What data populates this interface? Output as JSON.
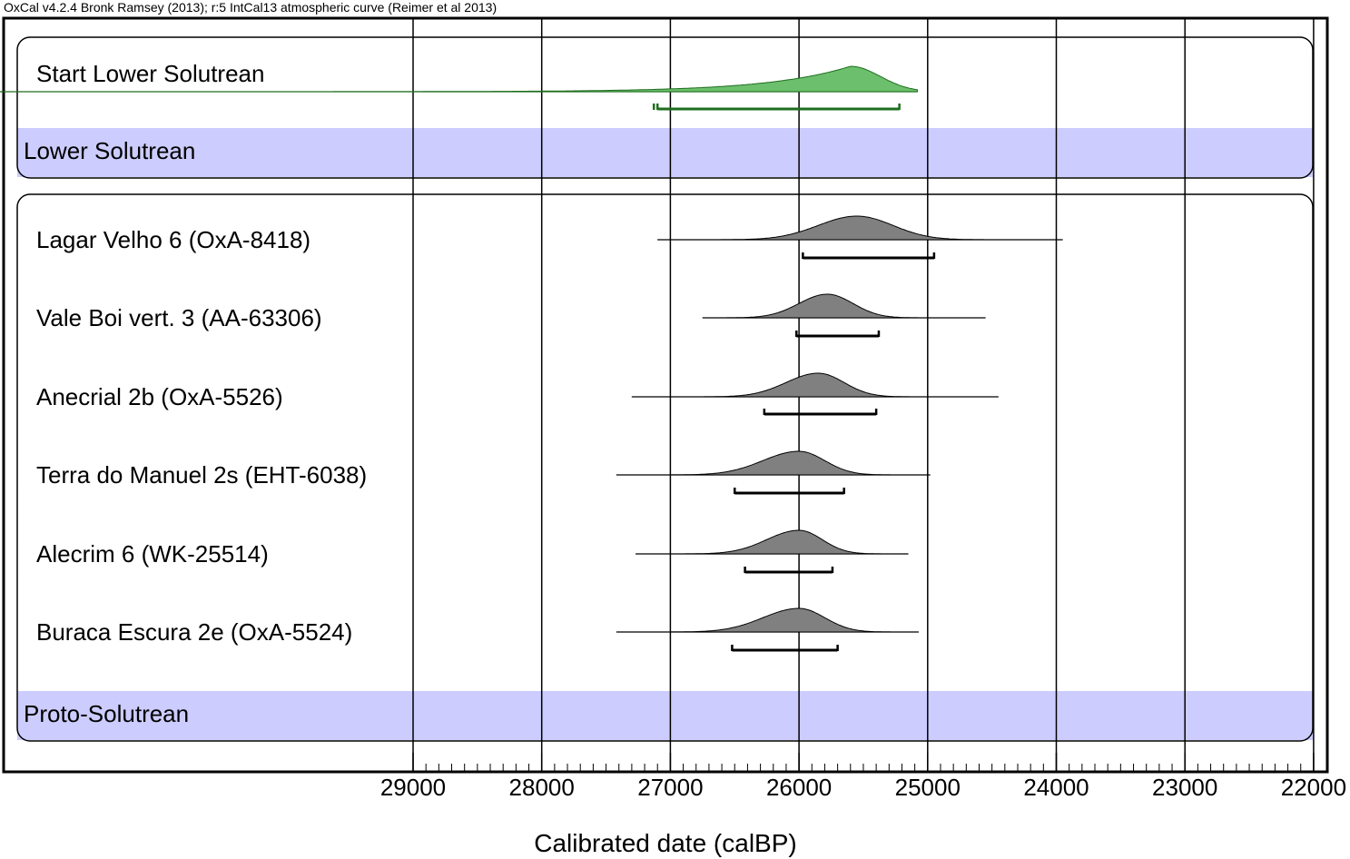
{
  "header": "OxCal v4.2.4 Bronk Ramsey (2013); r:5 IntCal13 atmospheric curve (Reimer et al 2013)",
  "colors": {
    "boundary_fill": "#6cbf6c",
    "boundary_line": "#1e6e1e",
    "date_fill": "#808080",
    "phase_band": "#ccccff"
  },
  "chart_data": {
    "type": "area",
    "xlabel": "Calibrated date (calBP)",
    "xlim": [
      29000,
      22000
    ],
    "x_ticks": [
      29000,
      28000,
      27000,
      26000,
      25000,
      24000,
      23000,
      22000
    ],
    "phases": [
      {
        "label": "Lower Solutrean"
      },
      {
        "label": "Proto-Solutrean"
      }
    ],
    "rows": [
      {
        "label": "Start Lower Solutrean",
        "kind": "boundary",
        "mode": 25600,
        "sigma_old": 700,
        "sigma_young": 230,
        "start": 30000,
        "end": 25080,
        "range": [
          27100,
          25220
        ]
      },
      {
        "label": "Lagar Velho 6 (OxA-8418)",
        "kind": "date",
        "mode": 25550,
        "sigma_old": 300,
        "sigma_young": 280,
        "start": 27100,
        "end": 23950,
        "range": [
          25970,
          24950
        ]
      },
      {
        "label": "Vale Boi vert. 3 (AA-63306)",
        "kind": "date",
        "mode": 25780,
        "sigma_old": 220,
        "sigma_young": 200,
        "start": 26750,
        "end": 24550,
        "range": [
          26020,
          25380
        ]
      },
      {
        "label": "Anecrial 2b (OxA-5526)",
        "kind": "date",
        "mode": 25850,
        "sigma_old": 250,
        "sigma_young": 200,
        "start": 27300,
        "end": 24450,
        "range": [
          26270,
          25400
        ]
      },
      {
        "label": "Terra do Manuel 2s (EHT-6038)",
        "kind": "date",
        "mode": 26000,
        "sigma_old": 280,
        "sigma_young": 200,
        "start": 27420,
        "end": 24980,
        "range": [
          26500,
          25650
        ]
      },
      {
        "label": "Alecrim 6 (WK-25514)",
        "kind": "date",
        "mode": 26000,
        "sigma_old": 250,
        "sigma_young": 180,
        "start": 27270,
        "end": 25150,
        "range": [
          26420,
          25740
        ]
      },
      {
        "label": "Buraca Escura 2e (OxA-5524)",
        "kind": "date",
        "mode": 26000,
        "sigma_old": 280,
        "sigma_young": 200,
        "start": 27420,
        "end": 25070,
        "range": [
          26520,
          25700
        ]
      }
    ]
  }
}
